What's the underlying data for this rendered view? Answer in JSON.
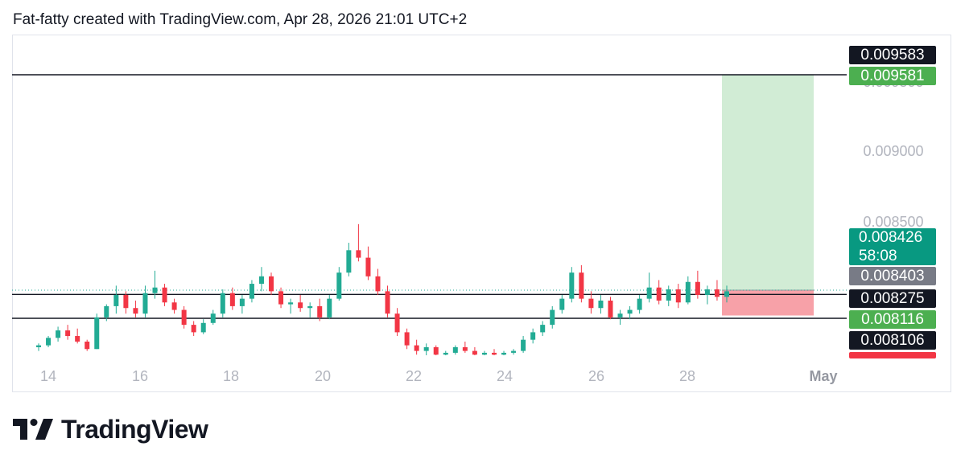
{
  "header": {
    "caption": "Fat-fatty created with TradingView.com, Apr 28, 2026 21:01 UTC+2"
  },
  "brand": {
    "name": "TradingView",
    "icon": "tradingview-logo-icon"
  },
  "colors": {
    "up": "#22ab94",
    "down": "#f23645",
    "profit_zone": "#d1ecd5",
    "loss_zone": "#f7a1a8",
    "axis_text": "#b2b5be",
    "line": "#131722"
  },
  "chart_data": {
    "type": "candlestick",
    "timeframe_note": "intraday candles, Apr 13 – Apr 28",
    "x_tick_labels": [
      "14",
      "16",
      "18",
      "20",
      "22",
      "24",
      "26",
      "28",
      "May"
    ],
    "y_tick_labels": [
      "0.009500",
      "0.009000",
      "0.008500"
    ],
    "ylim": [
      0.00806,
      0.0096
    ],
    "horizontal_lines": [
      0.009581,
      0.008403,
      0.008275
    ],
    "price_tags": [
      {
        "value": "0.009583",
        "style": "black"
      },
      {
        "value": "0.009581",
        "style": "green"
      },
      {
        "value": "0.008426",
        "style": "teal",
        "sub": "58:08"
      },
      {
        "value": "0.008403",
        "style": "gray"
      },
      {
        "value": "0.008275",
        "style": "black"
      },
      {
        "value": "0.008116",
        "style": "green"
      },
      {
        "value": "0.008106",
        "style": "black"
      }
    ],
    "last_price": 0.008426,
    "countdown": "58:08",
    "position": {
      "type": "long",
      "entry": 0.008426,
      "target": 0.009581,
      "stop": 0.00829,
      "start": "Apr 28",
      "end": "Apr 30"
    },
    "ohlc_approx": [
      [
        8.12,
        8.14,
        8.1,
        8.13
      ],
      [
        8.13,
        8.18,
        8.12,
        8.17
      ],
      [
        8.17,
        8.23,
        8.15,
        8.21
      ],
      [
        8.21,
        8.24,
        8.16,
        8.18
      ],
      [
        8.18,
        8.22,
        8.14,
        8.15
      ],
      [
        8.15,
        8.16,
        8.1,
        8.11
      ],
      [
        8.11,
        8.3,
        8.11,
        8.28
      ],
      [
        8.28,
        8.35,
        8.26,
        8.34
      ],
      [
        8.34,
        8.45,
        8.3,
        8.4
      ],
      [
        8.4,
        8.42,
        8.3,
        8.33
      ],
      [
        8.33,
        8.37,
        8.28,
        8.3
      ],
      [
        8.3,
        8.45,
        8.28,
        8.41
      ],
      [
        8.41,
        8.53,
        8.38,
        8.44
      ],
      [
        8.44,
        8.46,
        8.34,
        8.36
      ],
      [
        8.36,
        8.38,
        8.3,
        8.32
      ],
      [
        8.32,
        8.34,
        8.22,
        8.24
      ],
      [
        8.24,
        8.26,
        8.18,
        8.2
      ],
      [
        8.2,
        8.27,
        8.19,
        8.25
      ],
      [
        8.25,
        8.32,
        8.24,
        8.3
      ],
      [
        8.3,
        8.43,
        8.28,
        8.41
      ],
      [
        8.41,
        8.44,
        8.32,
        8.34
      ],
      [
        8.34,
        8.4,
        8.3,
        8.38
      ],
      [
        8.38,
        8.48,
        8.36,
        8.46
      ],
      [
        8.46,
        8.55,
        8.42,
        8.5
      ],
      [
        8.5,
        8.52,
        8.4,
        8.42
      ],
      [
        8.42,
        8.44,
        8.33,
        8.35
      ],
      [
        8.35,
        8.38,
        8.3,
        8.36
      ],
      [
        8.36,
        8.4,
        8.31,
        8.33
      ],
      [
        8.33,
        8.36,
        8.28,
        8.34
      ],
      [
        8.34,
        8.38,
        8.26,
        8.28
      ],
      [
        8.28,
        8.4,
        8.27,
        8.38
      ],
      [
        8.38,
        8.55,
        8.37,
        8.52
      ],
      [
        8.52,
        8.68,
        8.5,
        8.64
      ],
      [
        8.64,
        8.78,
        8.58,
        8.6
      ],
      [
        8.6,
        8.66,
        8.48,
        8.5
      ],
      [
        8.5,
        8.54,
        8.4,
        8.42
      ],
      [
        8.42,
        8.45,
        8.28,
        8.3
      ],
      [
        8.3,
        8.33,
        8.18,
        8.2
      ],
      [
        8.2,
        8.22,
        8.11,
        8.13
      ],
      [
        8.13,
        8.16,
        8.08,
        8.1
      ],
      [
        8.1,
        8.14,
        8.07,
        8.12
      ],
      [
        8.12,
        8.13,
        8.07,
        8.08
      ],
      [
        8.08,
        8.1,
        8.07,
        8.09
      ],
      [
        8.09,
        8.13,
        8.08,
        8.12
      ],
      [
        8.12,
        8.15,
        8.09,
        8.1
      ],
      [
        8.1,
        8.12,
        8.07,
        8.08
      ],
      [
        8.08,
        8.1,
        8.07,
        8.09
      ],
      [
        8.09,
        8.11,
        8.07,
        8.08
      ],
      [
        8.08,
        8.1,
        8.07,
        8.09
      ],
      [
        8.09,
        8.11,
        8.08,
        8.1
      ],
      [
        8.1,
        8.18,
        8.09,
        8.16
      ],
      [
        8.16,
        8.22,
        8.14,
        8.2
      ],
      [
        8.2,
        8.26,
        8.18,
        8.24
      ],
      [
        8.24,
        8.34,
        8.22,
        8.32
      ],
      [
        8.32,
        8.4,
        8.3,
        8.38
      ],
      [
        8.38,
        8.55,
        8.36,
        8.52
      ],
      [
        8.52,
        8.56,
        8.36,
        8.38
      ],
      [
        8.38,
        8.42,
        8.3,
        8.33
      ],
      [
        8.33,
        8.4,
        8.3,
        8.37
      ],
      [
        8.37,
        8.39,
        8.27,
        8.28
      ],
      [
        8.28,
        8.32,
        8.24,
        8.3
      ],
      [
        8.3,
        8.34,
        8.27,
        8.32
      ],
      [
        8.32,
        8.4,
        8.3,
        8.38
      ],
      [
        8.38,
        8.52,
        8.36,
        8.44
      ],
      [
        8.44,
        8.48,
        8.35,
        8.37
      ],
      [
        8.37,
        8.45,
        8.34,
        8.43
      ],
      [
        8.43,
        8.46,
        8.33,
        8.36
      ],
      [
        8.36,
        8.5,
        8.35,
        8.47
      ],
      [
        8.47,
        8.53,
        8.38,
        8.4
      ],
      [
        8.4,
        8.45,
        8.35,
        8.43
      ],
      [
        8.43,
        8.48,
        8.37,
        8.39
      ],
      [
        8.39,
        8.45,
        8.36,
        8.42
      ]
    ]
  }
}
